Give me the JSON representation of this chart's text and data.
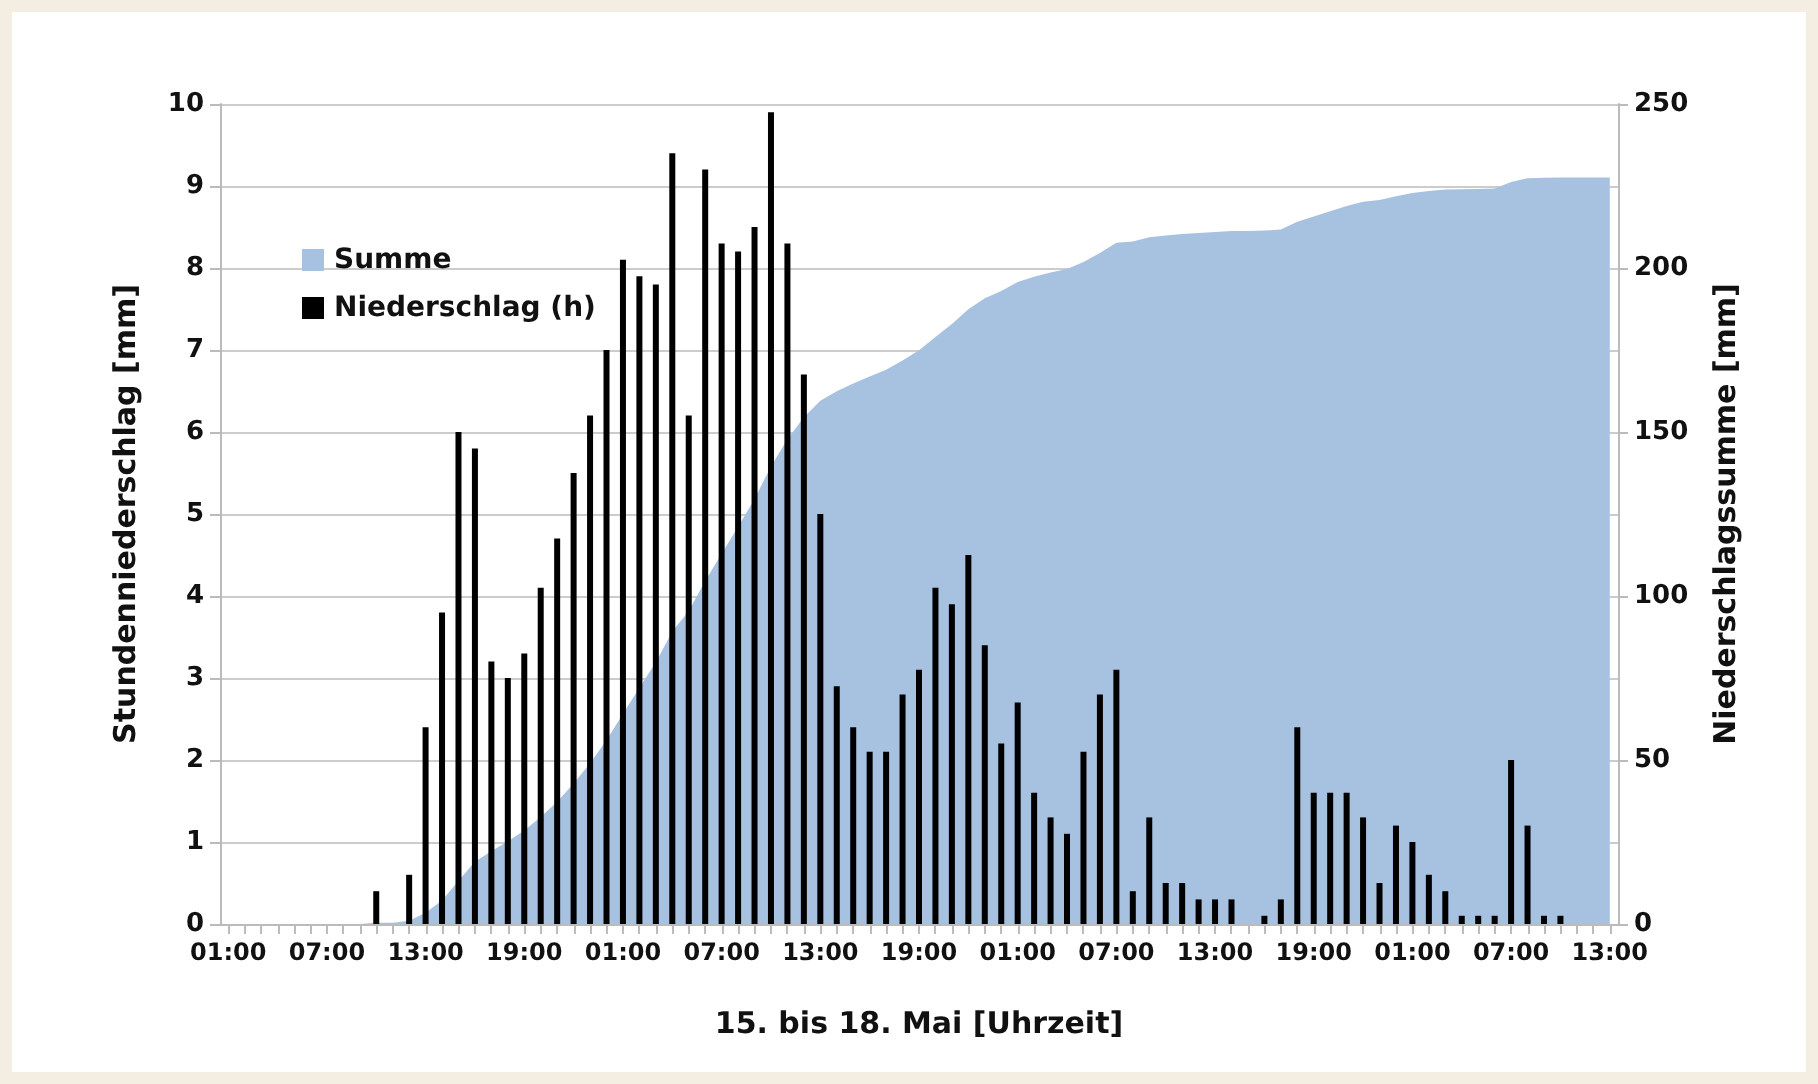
{
  "chart_data": {
    "type": "bar",
    "xlabel": "15. bis 18. Mai [Uhrzeit]",
    "ylabel": "Stundenniederschlag [mm]",
    "y2label": "Niederschlagssumme [mm]",
    "categories": [
      "01:00",
      null,
      null,
      null,
      null,
      null,
      "07:00",
      null,
      null,
      null,
      null,
      null,
      "13:00",
      null,
      null,
      null,
      null,
      null,
      "19:00",
      null,
      null,
      null,
      null,
      null,
      "01:00",
      null,
      null,
      null,
      null,
      null,
      "07:00",
      null,
      null,
      null,
      null,
      null,
      "13:00",
      null,
      null,
      null,
      null,
      null,
      "19:00",
      null,
      null,
      null,
      null,
      null,
      "01:00",
      null,
      null,
      null,
      null,
      null,
      "07:00",
      null,
      null,
      null,
      null,
      null,
      "13:00",
      null,
      null,
      null,
      null,
      null,
      "19:00",
      null,
      null,
      null,
      null,
      null,
      "01:00",
      null,
      null,
      null,
      null,
      null,
      "07:00",
      null,
      null,
      null,
      null,
      null,
      "13:00"
    ],
    "series": [
      {
        "name": "Summe",
        "type": "area",
        "axis": "y2",
        "color": "#a7c1e0",
        "values": [
          0,
          0,
          0,
          0,
          0,
          0,
          0,
          0,
          0,
          0.4,
          0.4,
          1.0,
          3.4,
          7.2,
          13.2,
          19.0,
          22.2,
          25.2,
          28.5,
          32.6,
          37.3,
          42.8,
          49.0,
          56.0,
          64.1,
          72.0,
          79.8,
          89.2,
          95.4,
          104.6,
          112.9,
          121.1,
          129.6,
          139.5,
          147.8,
          154.5,
          159.5,
          162.4,
          164.8,
          166.9,
          169.0,
          171.8,
          174.9,
          179.0,
          182.9,
          187.4,
          190.8,
          193.0,
          195.7,
          197.3,
          198.6,
          199.7,
          201.8,
          204.6,
          207.7,
          208.1,
          209.4,
          209.9,
          210.4,
          210.7,
          211.0,
          211.3,
          211.3,
          211.4,
          211.7,
          214.1,
          215.7,
          217.3,
          218.9,
          220.2,
          220.7,
          221.9,
          222.9,
          223.5,
          223.9,
          224.0,
          224.1,
          224.2,
          226.2,
          227.4,
          227.5,
          227.6,
          227.6,
          227.6,
          227.6
        ]
      },
      {
        "name": "Niederschlag (h)",
        "color": "#000000",
        "values": [
          null,
          null,
          null,
          null,
          null,
          null,
          null,
          null,
          null,
          0.4,
          null,
          0.6,
          2.4,
          3.8,
          6.0,
          5.8,
          3.2,
          3.0,
          3.3,
          4.1,
          4.7,
          5.5,
          6.2,
          7.0,
          8.1,
          7.9,
          7.8,
          9.4,
          6.2,
          9.2,
          8.3,
          8.2,
          8.5,
          9.9,
          8.3,
          6.7,
          5.0,
          2.9,
          2.4,
          2.1,
          2.1,
          2.8,
          3.1,
          4.1,
          3.9,
          4.5,
          3.4,
          2.2,
          2.7,
          1.6,
          1.3,
          1.1,
          2.1,
          2.8,
          3.1,
          0.4,
          1.3,
          0.5,
          0.5,
          0.3,
          0.3,
          0.3,
          null,
          0.1,
          0.3,
          2.4,
          1.6,
          1.6,
          1.6,
          1.3,
          0.5,
          1.2,
          1.0,
          0.6,
          0.4,
          0.1,
          0.1,
          0.1,
          2.0,
          1.2,
          0.1,
          0.1,
          null,
          null,
          null
        ]
      }
    ],
    "ylim": [
      0,
      10
    ],
    "yticks": [
      0,
      1,
      2,
      3,
      4,
      5,
      6,
      7,
      8,
      9,
      10
    ],
    "y2lim": [
      0,
      250
    ],
    "y2ticks": [
      0,
      50,
      100,
      150,
      200,
      250
    ],
    "grid": "y",
    "legend": "top left"
  }
}
